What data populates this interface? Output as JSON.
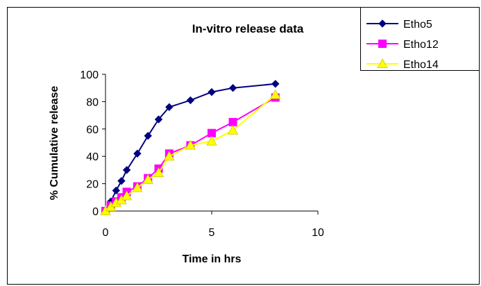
{
  "chart_data": {
    "type": "line",
    "title": "In-vitro release data",
    "xlabel": "Time in hrs",
    "ylabel": "% Cumulative release",
    "xlim": [
      0,
      10
    ],
    "ylim": [
      0,
      100
    ],
    "x_ticks": [
      0,
      5,
      10
    ],
    "y_ticks": [
      0,
      20,
      40,
      60,
      80,
      100
    ],
    "grid": false,
    "legend_position": "top-right",
    "series": [
      {
        "name": "Etho5",
        "color": "#000080",
        "marker": "diamond",
        "x": [
          0,
          0.25,
          0.5,
          0.75,
          1,
          1.5,
          2,
          2.5,
          3,
          4,
          5,
          6,
          8
        ],
        "y": [
          0,
          7,
          15,
          22,
          30,
          42,
          55,
          67,
          76,
          81,
          87,
          90,
          93
        ]
      },
      {
        "name": "Etho12",
        "color": "#FF00FF",
        "marker": "square",
        "x": [
          0,
          0.25,
          0.5,
          0.75,
          1,
          1.5,
          2,
          2.5,
          3,
          4,
          5,
          6,
          8
        ],
        "y": [
          0,
          4,
          7,
          10,
          14,
          18,
          24,
          31,
          42,
          48,
          57,
          65,
          83
        ]
      },
      {
        "name": "Etho14",
        "color": "#FFFF00",
        "marker": "triangle",
        "x": [
          0,
          0.25,
          0.5,
          0.75,
          1,
          1.5,
          2,
          2.5,
          3,
          4,
          5,
          6,
          8
        ],
        "y": [
          0,
          3,
          6,
          8,
          11,
          17,
          23,
          28,
          40,
          48,
          51,
          59,
          85
        ]
      }
    ]
  }
}
